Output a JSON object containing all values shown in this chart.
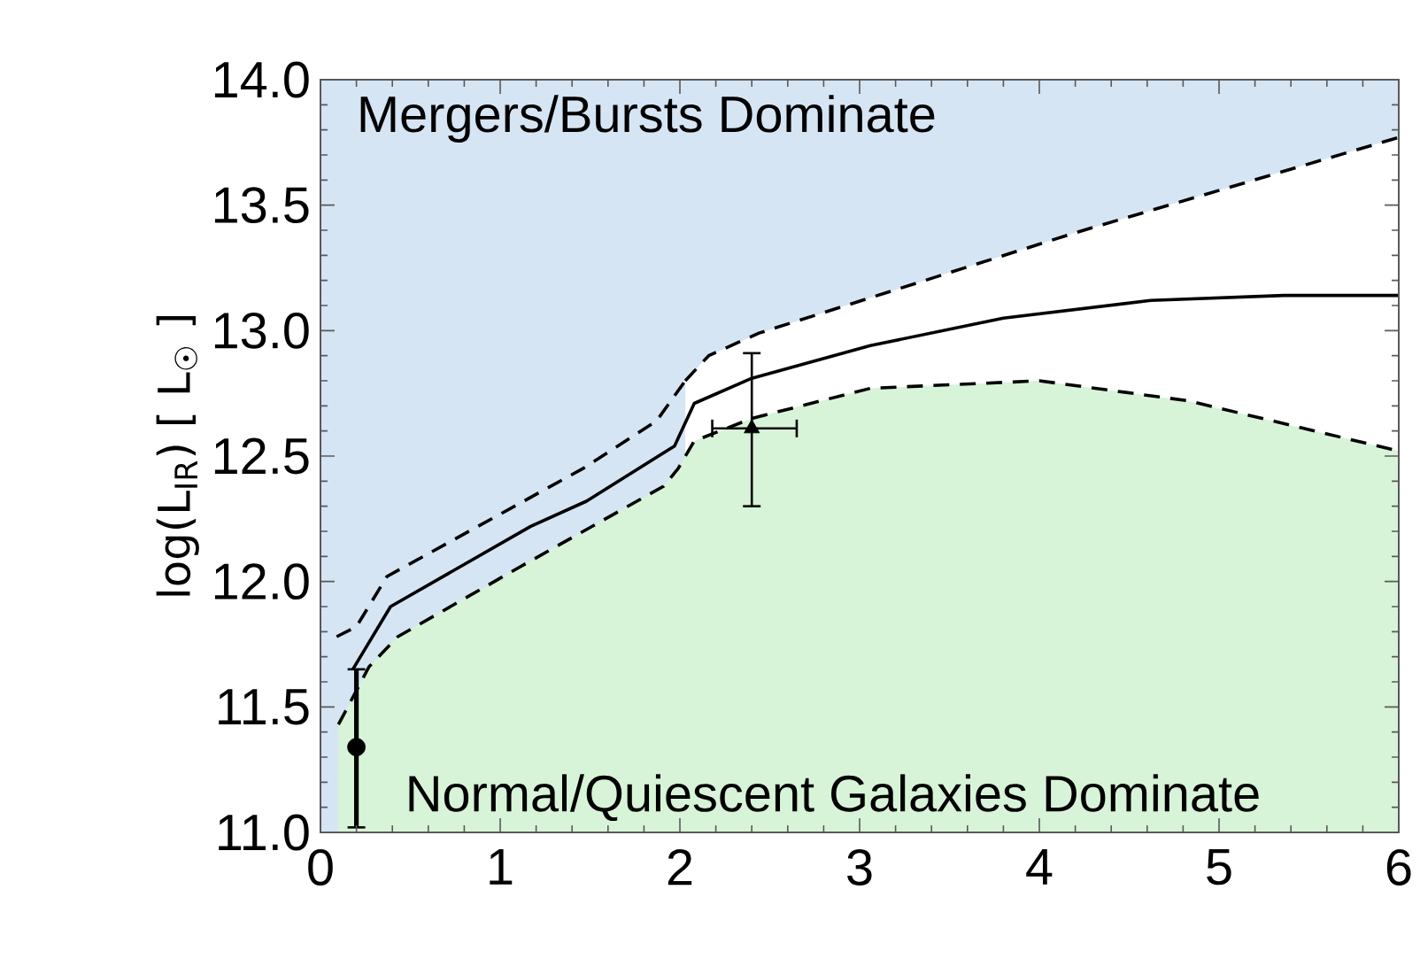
{
  "chart_data": {
    "type": "line",
    "ylabel": "log(L$_{IR}$)  [ L$_{☉}$ ]",
    "xlim": [
      0,
      6
    ],
    "ylim": [
      11,
      14
    ],
    "xticks": [
      0,
      1,
      2,
      3,
      4,
      5,
      6
    ],
    "yticks": [
      {
        "value": 11,
        "label": "11.0"
      },
      11.5,
      {
        "value": 12,
        "label": "12.0"
      },
      12.5,
      {
        "value": 13,
        "label": "13.0"
      },
      13.5,
      {
        "value": 14,
        "label": "14.0"
      }
    ],
    "annotations": [
      "Mergers/Bursts Dominate",
      "Normal/Quiescent Galaxies Dominate"
    ],
    "series": [
      {
        "type": "area",
        "color": "#d6e5f4",
        "x": [
          0,
          6
        ],
        "values": [
          14,
          14
        ]
      },
      {
        "type": "area",
        "color": "#ffffff",
        "line_style": "dashed",
        "x": [
          2.03,
          2.16,
          2.44,
          4.2,
          6.0
        ],
        "values": [
          12.8,
          12.9,
          12.99,
          13.39,
          13.77
        ]
      },
      {
        "type": "area",
        "color": "#d8f4d8",
        "line_style": "dashed",
        "x": [
          0.1,
          0.27,
          0.43,
          1.09,
          1.91,
          1.99,
          2.08,
          2.4,
          3.06,
          4.0,
          4.83,
          6
        ],
        "values": [
          11.43,
          11.66,
          11.78,
          12.05,
          12.38,
          12.45,
          12.56,
          12.65,
          12.77,
          12.8,
          12.72,
          12.52
        ]
      },
      {
        "type": "line",
        "color": "#000000",
        "line_style": "solid",
        "x": [
          0.18,
          0.39,
          1.17,
          1.48,
          1.97,
          2.08,
          2.4,
          3.06,
          3.8,
          4.62,
          5.36,
          6.0
        ],
        "values": [
          11.65,
          11.9,
          12.22,
          12.32,
          12.54,
          12.71,
          12.81,
          12.94,
          13.05,
          13.12,
          13.14,
          13.14
        ]
      },
      {
        "type": "line",
        "color": "#000000",
        "line_style": "dashed",
        "x": [
          0.09,
          0.2,
          0.37,
          1.46,
          1.87,
          2.03
        ],
        "values": [
          11.78,
          11.82,
          12.02,
          12.45,
          12.64,
          12.8
        ]
      },
      {
        "type": "scatter",
        "color": "#000000",
        "marker": "circle",
        "x": [
          0.2
        ],
        "values": [
          11.34
        ],
        "errors": [
          [
            11.02,
            11.65
          ]
        ]
      },
      {
        "type": "scatter",
        "color": "#000000",
        "marker": "triangle",
        "x": [
          2.4
        ],
        "values": [
          12.61
        ],
        "errors": [
          [
            12.3,
            12.91
          ]
        ],
        "xerrors": [
          [
            2.18,
            2.65
          ]
        ]
      }
    ]
  }
}
